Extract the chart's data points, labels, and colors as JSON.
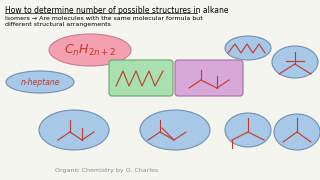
{
  "title": "How to determine number of possible structures in alkane",
  "subtitle_line1": "Isomers → Are molecules with the same molecular formula but",
  "subtitle_line2": "different structural arrangements",
  "label_nheptane": "n-heptane",
  "footer": "Organic Chemistry by O. Charles",
  "bg_color": "#f5f5f0",
  "line_color": "#c0392b",
  "pink_ellipse_color": "#f4a0b0",
  "green_ellipse_color": "#a8e0b0",
  "blue_ellipse_color": "#a8c8e8",
  "purple_ellipse_color": "#d8a8d8",
  "nheptane_ellipse_color": "#a8c8e8"
}
